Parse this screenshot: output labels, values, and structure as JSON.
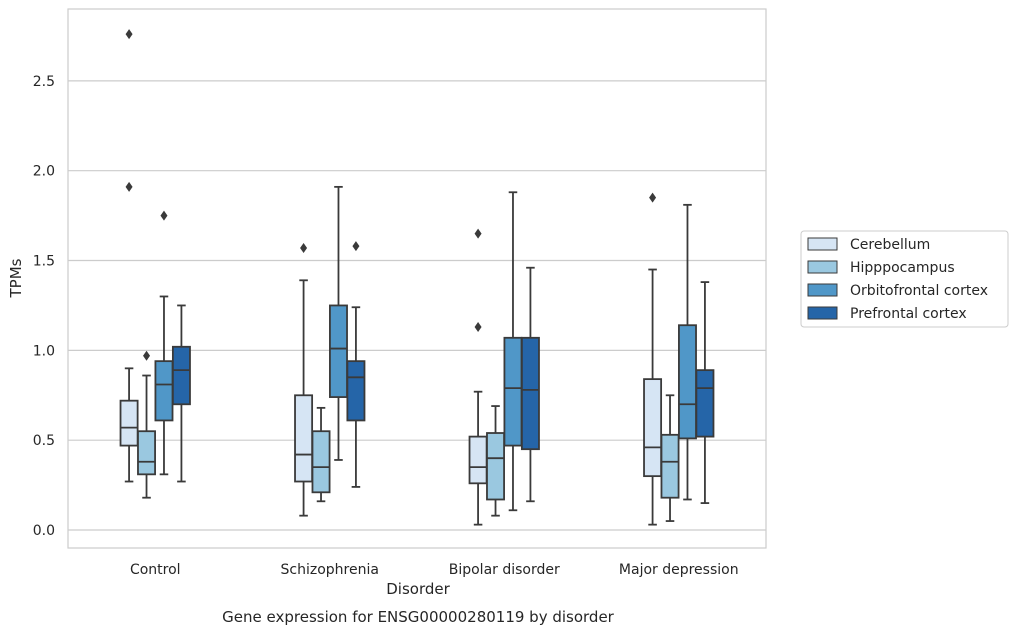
{
  "chart_data": {
    "type": "box",
    "title": "Gene expression for ENSG00000280119 by disorder",
    "xlabel": "Disorder",
    "ylabel": "TPMs",
    "ylim": [
      -0.1,
      2.9
    ],
    "yticks": [
      "0.0",
      "0.5",
      "1.0",
      "1.5",
      "2.0",
      "2.5"
    ],
    "ytick_values": [
      0.0,
      0.5,
      1.0,
      1.5,
      2.0,
      2.5
    ],
    "categories": [
      "Control",
      "Schizophrenia",
      "Bipolar disorder",
      "Major depression"
    ],
    "grid": "horizontal",
    "legend_position": "right",
    "series": [
      {
        "name": "Cerebellum",
        "color": "#d6e5f4",
        "boxes": [
          {
            "min": 0.27,
            "q1": 0.47,
            "median": 0.57,
            "q3": 0.72,
            "max": 0.9,
            "outliers": [
              1.91,
              2.76
            ]
          },
          {
            "min": 0.08,
            "q1": 0.27,
            "median": 0.42,
            "q3": 0.75,
            "max": 1.39,
            "outliers": [
              1.57
            ]
          },
          {
            "min": 0.03,
            "q1": 0.26,
            "median": 0.35,
            "q3": 0.52,
            "max": 0.77,
            "outliers": [
              1.13,
              1.65
            ]
          },
          {
            "min": 0.03,
            "q1": 0.3,
            "median": 0.46,
            "q3": 0.84,
            "max": 1.45,
            "outliers": [
              1.85
            ]
          }
        ]
      },
      {
        "name": "Hipppocampus",
        "color": "#9ac8e0",
        "boxes": [
          {
            "min": 0.18,
            "q1": 0.31,
            "median": 0.38,
            "q3": 0.55,
            "max": 0.86,
            "outliers": [
              0.97
            ]
          },
          {
            "min": 0.16,
            "q1": 0.21,
            "median": 0.35,
            "q3": 0.55,
            "max": 0.68,
            "outliers": []
          },
          {
            "min": 0.08,
            "q1": 0.17,
            "median": 0.4,
            "q3": 0.54,
            "max": 0.69,
            "outliers": []
          },
          {
            "min": 0.05,
            "q1": 0.18,
            "median": 0.38,
            "q3": 0.53,
            "max": 0.75,
            "outliers": []
          }
        ]
      },
      {
        "name": "Orbitofrontal cortex",
        "color": "#5097c8",
        "boxes": [
          {
            "min": 0.31,
            "q1": 0.61,
            "median": 0.81,
            "q3": 0.94,
            "max": 1.3,
            "outliers": [
              1.75
            ]
          },
          {
            "min": 0.39,
            "q1": 0.74,
            "median": 1.01,
            "q3": 1.25,
            "max": 1.91,
            "outliers": []
          },
          {
            "min": 0.11,
            "q1": 0.47,
            "median": 0.79,
            "q3": 1.07,
            "max": 1.88,
            "outliers": []
          },
          {
            "min": 0.17,
            "q1": 0.51,
            "median": 0.7,
            "q3": 1.14,
            "max": 1.81,
            "outliers": []
          }
        ]
      },
      {
        "name": "Prefrontal cortex",
        "color": "#2565a8",
        "boxes": [
          {
            "min": 0.27,
            "q1": 0.7,
            "median": 0.89,
            "q3": 1.02,
            "max": 1.25,
            "outliers": []
          },
          {
            "min": 0.24,
            "q1": 0.61,
            "median": 0.85,
            "q3": 0.94,
            "max": 1.24,
            "outliers": [
              1.58
            ]
          },
          {
            "min": 0.16,
            "q1": 0.45,
            "median": 0.78,
            "q3": 1.07,
            "max": 1.46,
            "outliers": []
          },
          {
            "min": 0.15,
            "q1": 0.52,
            "median": 0.79,
            "q3": 0.89,
            "max": 1.38,
            "outliers": []
          }
        ]
      }
    ]
  }
}
